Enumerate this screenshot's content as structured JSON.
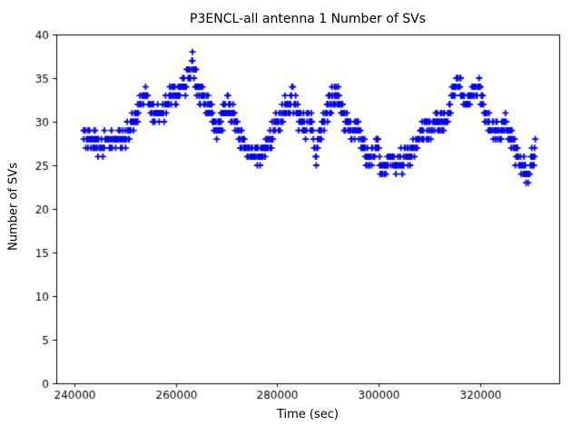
{
  "chart_data": {
    "type": "scatter",
    "title": "P3ENCL-all antenna 1 Number of SVs",
    "xlabel": "Time (sec)",
    "ylabel": "Number of SVs",
    "marker": "+",
    "color": "#0000ff",
    "grid": false,
    "legend": "none",
    "xlim": [
      236500,
      335500
    ],
    "ylim": [
      0,
      40
    ],
    "xticks": [
      240000,
      260000,
      280000,
      300000,
      320000
    ],
    "yticks": [
      0,
      5,
      10,
      15,
      20,
      25,
      30,
      35,
      40
    ],
    "series": [
      {
        "name": "number-of-svs",
        "t_start": 241900,
        "t_end": 330900,
        "t_step": 140,
        "y_min": 23,
        "y_max": 38,
        "keypoints": [
          [
            242000,
            29
          ],
          [
            242600,
            27.5
          ],
          [
            243400,
            27.5
          ],
          [
            244200,
            28.5
          ],
          [
            244800,
            27
          ],
          [
            245600,
            27.3
          ],
          [
            246400,
            27.8
          ],
          [
            247200,
            28
          ],
          [
            248000,
            27.6
          ],
          [
            248800,
            28
          ],
          [
            249600,
            28.2
          ],
          [
            250400,
            28.6
          ],
          [
            251200,
            29.6
          ],
          [
            252000,
            30.6
          ],
          [
            252800,
            31.8
          ],
          [
            253600,
            33
          ],
          [
            254400,
            32.8
          ],
          [
            255200,
            31.2
          ],
          [
            256000,
            30.6
          ],
          [
            256800,
            30.9
          ],
          [
            257600,
            31.3
          ],
          [
            258400,
            32.2
          ],
          [
            259200,
            33.6
          ],
          [
            259900,
            32.6
          ],
          [
            260600,
            33.2
          ],
          [
            261300,
            34
          ],
          [
            262100,
            34.4
          ],
          [
            262800,
            35.2
          ],
          [
            263300,
            37.2
          ],
          [
            263700,
            36
          ],
          [
            264300,
            33.8
          ],
          [
            265000,
            33
          ],
          [
            265800,
            32.4
          ],
          [
            266600,
            31.4
          ],
          [
            267300,
            30.4
          ],
          [
            267900,
            29.6
          ],
          [
            268500,
            29.2
          ],
          [
            269100,
            30.4
          ],
          [
            269800,
            31
          ],
          [
            270400,
            32
          ],
          [
            271000,
            31
          ],
          [
            271800,
            30.4
          ],
          [
            272400,
            28.4
          ],
          [
            273000,
            27.6
          ],
          [
            273800,
            27.2
          ],
          [
            274800,
            26.8
          ],
          [
            275600,
            26.2
          ],
          [
            276300,
            25.6
          ],
          [
            277000,
            26.8
          ],
          [
            277800,
            27
          ],
          [
            278700,
            28.2
          ],
          [
            279600,
            29.4
          ],
          [
            280500,
            30.4
          ],
          [
            281400,
            31.4
          ],
          [
            282200,
            32.4
          ],
          [
            283100,
            32.6
          ],
          [
            283900,
            31.2
          ],
          [
            284500,
            29.6
          ],
          [
            285100,
            30.6
          ],
          [
            285700,
            29.2
          ],
          [
            286300,
            30.4
          ],
          [
            286900,
            29.6
          ],
          [
            287300,
            27.2
          ],
          [
            287700,
            26.4
          ],
          [
            288300,
            29.2
          ],
          [
            289100,
            29.8
          ],
          [
            290000,
            31.6
          ],
          [
            290800,
            32.6
          ],
          [
            291700,
            33
          ],
          [
            292400,
            32.4
          ],
          [
            292900,
            30.8
          ],
          [
            293400,
            29.6
          ],
          [
            293900,
            30
          ],
          [
            294500,
            29.4
          ],
          [
            295100,
            28.6
          ],
          [
            295700,
            29.4
          ],
          [
            296300,
            27.8
          ],
          [
            296900,
            26.8
          ],
          [
            297600,
            26.2
          ],
          [
            298400,
            25.6
          ],
          [
            299200,
            26.4
          ],
          [
            299700,
            27.4
          ],
          [
            300100,
            25.2
          ],
          [
            300500,
            23.6
          ],
          [
            301000,
            25.2
          ],
          [
            301800,
            25.6
          ],
          [
            302600,
            25.8
          ],
          [
            303300,
            25.2
          ],
          [
            304000,
            25.6
          ],
          [
            304800,
            25.4
          ],
          [
            305500,
            26.4
          ],
          [
            306200,
            26.2
          ],
          [
            306900,
            27.2
          ],
          [
            307600,
            27.8
          ],
          [
            308400,
            29.2
          ],
          [
            309200,
            29.6
          ],
          [
            310000,
            28.6
          ],
          [
            310600,
            29.8
          ],
          [
            311200,
            30.4
          ],
          [
            311800,
            29.2
          ],
          [
            312400,
            30.2
          ],
          [
            313000,
            29.4
          ],
          [
            313600,
            30.8
          ],
          [
            314200,
            32.4
          ],
          [
            314700,
            33.8
          ],
          [
            315200,
            34.8
          ],
          [
            315700,
            34.4
          ],
          [
            316200,
            33.4
          ],
          [
            316800,
            32
          ],
          [
            317400,
            31.6
          ],
          [
            318000,
            33.2
          ],
          [
            318600,
            33.8
          ],
          [
            319200,
            33.4
          ],
          [
            319800,
            33.8
          ],
          [
            320400,
            32.6
          ],
          [
            321000,
            30.8
          ],
          [
            321600,
            29.8
          ],
          [
            322200,
            29
          ],
          [
            322800,
            28.6
          ],
          [
            323400,
            29.4
          ],
          [
            324000,
            28.8
          ],
          [
            324600,
            30.4
          ],
          [
            325200,
            29
          ],
          [
            325800,
            28.4
          ],
          [
            326400,
            27.4
          ],
          [
            327000,
            26.2
          ],
          [
            327600,
            25.6
          ],
          [
            328200,
            25
          ],
          [
            328800,
            24.4
          ],
          [
            329300,
            23.6
          ],
          [
            329800,
            25
          ],
          [
            330300,
            26
          ],
          [
            330800,
            26.6
          ]
        ]
      }
    ]
  }
}
